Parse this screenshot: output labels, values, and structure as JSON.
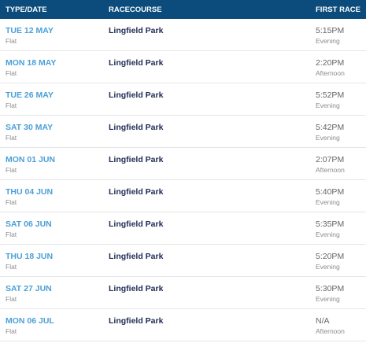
{
  "header": {
    "type_date": "TYPE/DATE",
    "racecourse": "RACECOURSE",
    "first_race": "FIRST RACE"
  },
  "table": {
    "rows": [
      {
        "date": "TUE 12 MAY",
        "type": "Flat",
        "course": "Lingfield Park",
        "time": "5:15PM",
        "period": "Evening"
      },
      {
        "date": "MON 18 MAY",
        "type": "Flat",
        "course": "Lingfield Park",
        "time": "2:20PM",
        "period": "Afternoon"
      },
      {
        "date": "TUE 26 MAY",
        "type": "Flat",
        "course": "Lingfield Park",
        "time": "5:52PM",
        "period": "Evening"
      },
      {
        "date": "SAT 30 MAY",
        "type": "Flat",
        "course": "Lingfield Park",
        "time": "5:42PM",
        "period": "Evening"
      },
      {
        "date": "MON 01 JUN",
        "type": "Flat",
        "course": "Lingfield Park",
        "time": "2:07PM",
        "period": "Afternoon"
      },
      {
        "date": "THU 04 JUN",
        "type": "Flat",
        "course": "Lingfield Park",
        "time": "5:40PM",
        "period": "Evening"
      },
      {
        "date": "SAT 06 JUN",
        "type": "Flat",
        "course": "Lingfield Park",
        "time": "5:35PM",
        "period": "Evening"
      },
      {
        "date": "THU 18 JUN",
        "type": "Flat",
        "course": "Lingfield Park",
        "time": "5:20PM",
        "period": "Evening"
      },
      {
        "date": "SAT 27 JUN",
        "type": "Flat",
        "course": "Lingfield Park",
        "time": "5:30PM",
        "period": "Evening"
      },
      {
        "date": "MON 06 JUL",
        "type": "Flat",
        "course": "Lingfield Park",
        "time": "N/A",
        "period": "Afternoon"
      }
    ]
  }
}
